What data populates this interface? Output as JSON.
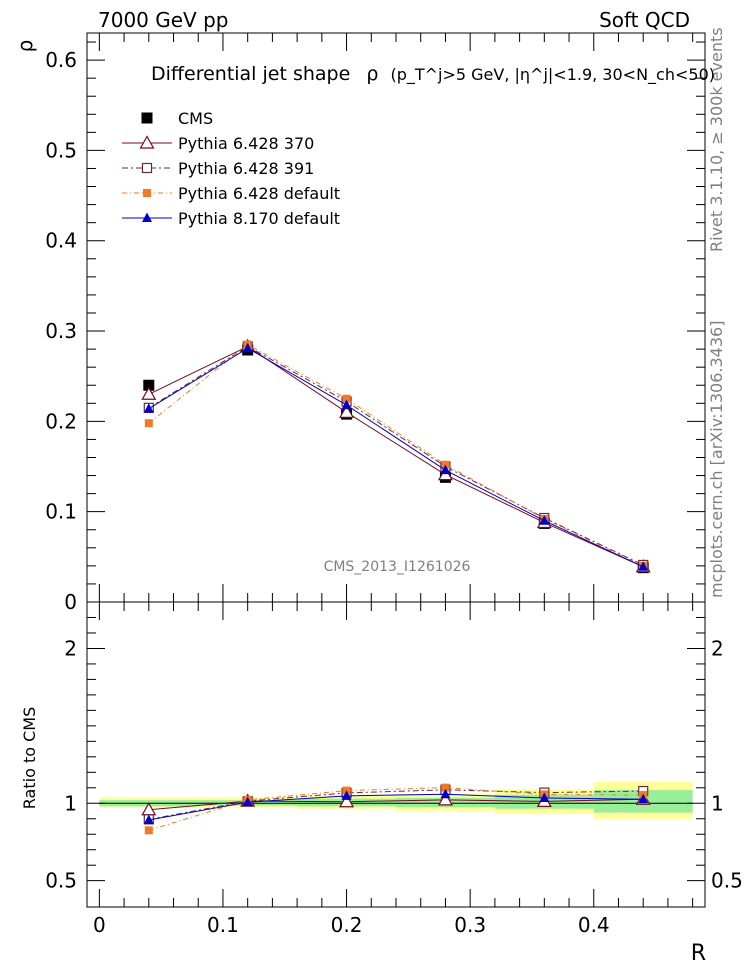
{
  "header": {
    "left": "7000 GeV pp",
    "right": "Soft QCD"
  },
  "side": {
    "rivet": "Rivet 3.1.10, ≥ 300k events",
    "mcplots": "mcplots.cern.ch [arXiv:1306.3436]"
  },
  "watermark": "CMS_2013_I1261026",
  "chart_data": [
    {
      "type": "line",
      "title": "Differential jet shape",
      "title_rho": "ρ",
      "title_cuts": "(p_T^j>5 GeV, |η^j|<1.9, 30<N_ch<50)",
      "ylabel": "ρ",
      "xlim": [
        -0.01,
        0.49
      ],
      "ylim": [
        0.0,
        0.63
      ],
      "yticks": [
        0.1,
        0.2,
        0.3,
        0.4,
        0.5,
        0.6
      ],
      "ytick_labels": [
        "0.1",
        "0.2",
        "0.3",
        "0.4",
        "0.5",
        "0.6"
      ],
      "y_zero_label": "0",
      "x": [
        0.04,
        0.12,
        0.2,
        0.28,
        0.36,
        0.44
      ],
      "legend_position": "top-left",
      "legend": [
        "CMS",
        "Pythia 6.428 370",
        "Pythia 6.428 391",
        "Pythia 6.428 default",
        "Pythia 8.170 default"
      ],
      "series": [
        {
          "name": "CMS",
          "values": [
            0.24,
            0.279,
            0.208,
            0.138,
            0.087,
            0.038
          ],
          "color": "#000000",
          "marker": "square-filled"
        },
        {
          "name": "Pythia 6.428 370",
          "values": [
            0.23,
            0.283,
            0.21,
            0.141,
            0.088,
            0.039
          ],
          "color": "#7a0a20",
          "marker": "triangle-open",
          "dash": "none"
        },
        {
          "name": "Pythia 6.428 391",
          "values": [
            0.215,
            0.283,
            0.222,
            0.15,
            0.093,
            0.041
          ],
          "color": "#6b2a3a",
          "marker": "square-open",
          "dash": "6,3,2,3"
        },
        {
          "name": "Pythia 6.428 default",
          "values": [
            0.198,
            0.285,
            0.225,
            0.152,
            0.092,
            0.04
          ],
          "color": "#f07a28",
          "marker": "square-filled-small",
          "dash": "5,3,1,3"
        },
        {
          "name": "Pythia 8.170 default",
          "values": [
            0.214,
            0.281,
            0.218,
            0.146,
            0.09,
            0.039
          ],
          "color": "#0000cc",
          "marker": "triangle-filled",
          "dash": "none"
        }
      ]
    },
    {
      "type": "line",
      "ylabel": "Ratio to CMS",
      "xlabel": "R",
      "xlim": [
        -0.01,
        0.49
      ],
      "ylim": [
        0.33,
        2.3
      ],
      "yticks": [
        0.5,
        1,
        2
      ],
      "ytick_labels": [
        "0.5",
        "1",
        "2"
      ],
      "xticks": [
        0,
        0.1,
        0.2,
        0.3,
        0.4
      ],
      "xtick_labels": [
        "0",
        "0.1",
        "0.2",
        "0.3",
        "0.4"
      ],
      "x": [
        0.04,
        0.12,
        0.2,
        0.28,
        0.36,
        0.44
      ],
      "bands": {
        "edges": [
          0,
          0.08,
          0.16,
          0.24,
          0.32,
          0.4,
          0.48
        ],
        "yellow_lo": [
          0.97,
          0.975,
          0.965,
          0.95,
          0.93,
          0.9
        ],
        "yellow_hi": [
          1.04,
          1.04,
          1.05,
          1.06,
          1.09,
          1.14
        ],
        "green_lo": [
          0.98,
          0.985,
          0.98,
          0.975,
          0.965,
          0.94
        ],
        "green_hi": [
          1.02,
          1.02,
          1.03,
          1.035,
          1.055,
          1.085
        ]
      },
      "series": [
        {
          "name": "Pythia 6.428 370",
          "values": [
            0.958,
            1.014,
            1.01,
            1.022,
            1.012,
            1.026
          ]
        },
        {
          "name": "Pythia 6.428 391",
          "values": [
            0.896,
            1.014,
            1.067,
            1.087,
            1.069,
            1.079
          ]
        },
        {
          "name": "Pythia 6.428 default",
          "values": [
            0.825,
            1.022,
            1.082,
            1.101,
            1.057,
            1.053
          ]
        },
        {
          "name": "Pythia 8.170 default",
          "values": [
            0.892,
            1.007,
            1.048,
            1.058,
            1.034,
            1.026
          ]
        }
      ]
    }
  ]
}
